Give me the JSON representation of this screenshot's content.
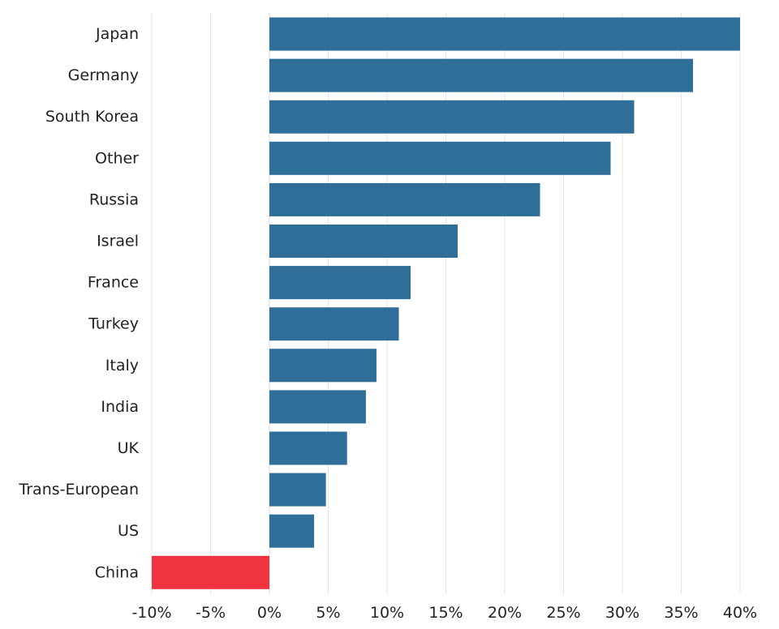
{
  "chart_data": {
    "type": "bar",
    "orientation": "horizontal",
    "categories": [
      "Japan",
      "Germany",
      "South Korea",
      "Other",
      "Russia",
      "Israel",
      "France",
      "Turkey",
      "Italy",
      "India",
      "UK",
      "Trans-European",
      "US",
      "China"
    ],
    "values": [
      40,
      36,
      31,
      29,
      23,
      16,
      12,
      11,
      9.1,
      8.2,
      6.6,
      4.8,
      3.8,
      -10
    ],
    "xlim": [
      -10,
      40
    ],
    "xticks": [
      -10,
      -5,
      0,
      5,
      10,
      15,
      20,
      25,
      30,
      35,
      40
    ],
    "xtick_labels": [
      "-10%",
      "-5%",
      "0%",
      "5%",
      "10%",
      "15%",
      "20%",
      "25%",
      "30%",
      "35%",
      "40%"
    ],
    "title": "",
    "xlabel": "",
    "ylabel": "",
    "grid": true,
    "colors": {
      "positive": "#2e6e99",
      "negative": "#ef3340"
    }
  }
}
